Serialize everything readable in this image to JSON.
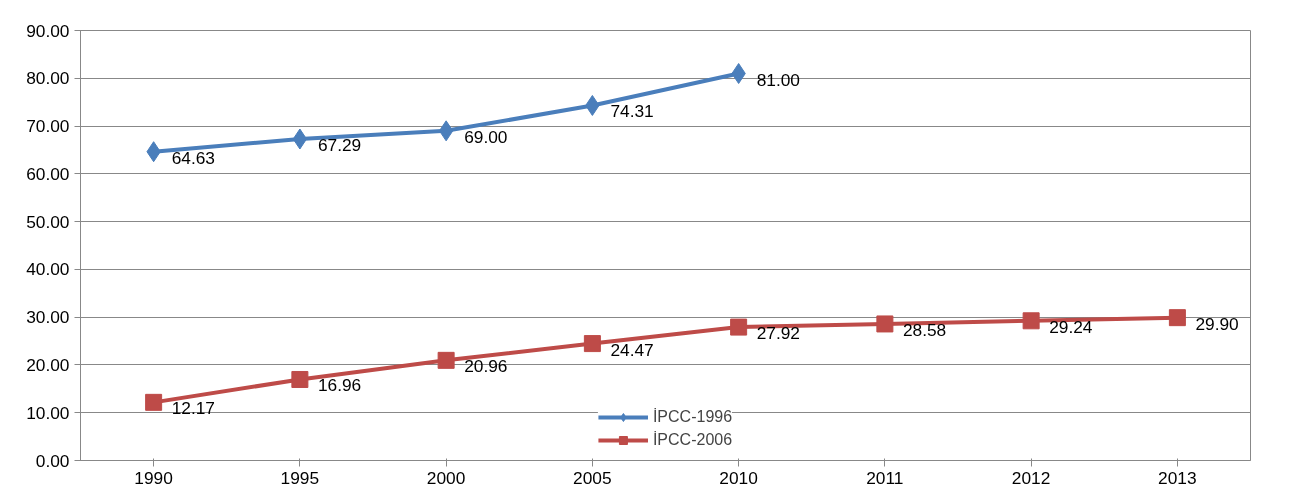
{
  "chart_data": {
    "type": "line",
    "categories": [
      "1990",
      "1995",
      "2000",
      "2005",
      "2010",
      "2011",
      "2012",
      "2013"
    ],
    "series": [
      {
        "name": "İPCC-1996",
        "color": "#4a7ebb",
        "marker": "diamond",
        "values": [
          64.63,
          67.29,
          69.0,
          74.31,
          81.0,
          null,
          null,
          null
        ],
        "value_labels": [
          "64.63",
          "67.29",
          "69.00",
          "74.31",
          "81.00",
          null,
          null,
          null
        ]
      },
      {
        "name": "İPCC-2006",
        "color": "#be4b48",
        "marker": "square",
        "values": [
          12.17,
          16.96,
          20.96,
          24.47,
          27.92,
          28.58,
          29.24,
          29.9
        ],
        "value_labels": [
          "12.17",
          "16.96",
          "20.96",
          "24.47",
          "27.92",
          "28.58",
          "29.24",
          "29.90"
        ]
      }
    ],
    "ylim": [
      0,
      90
    ],
    "yticks": [
      {
        "value": 0,
        "label": "0.00"
      },
      {
        "value": 10,
        "label": "10.00"
      },
      {
        "value": 20,
        "label": "20.00"
      },
      {
        "value": 30,
        "label": "30.00"
      },
      {
        "value": 40,
        "label": "40.00"
      },
      {
        "value": 50,
        "label": "50.00"
      },
      {
        "value": 60,
        "label": "60.00"
      },
      {
        "value": 70,
        "label": "70.00"
      },
      {
        "value": 80,
        "label": "80.00"
      },
      {
        "value": 90,
        "label": "90.00"
      }
    ],
    "grid": "y",
    "legend": "bottom",
    "line_style": "solid"
  }
}
